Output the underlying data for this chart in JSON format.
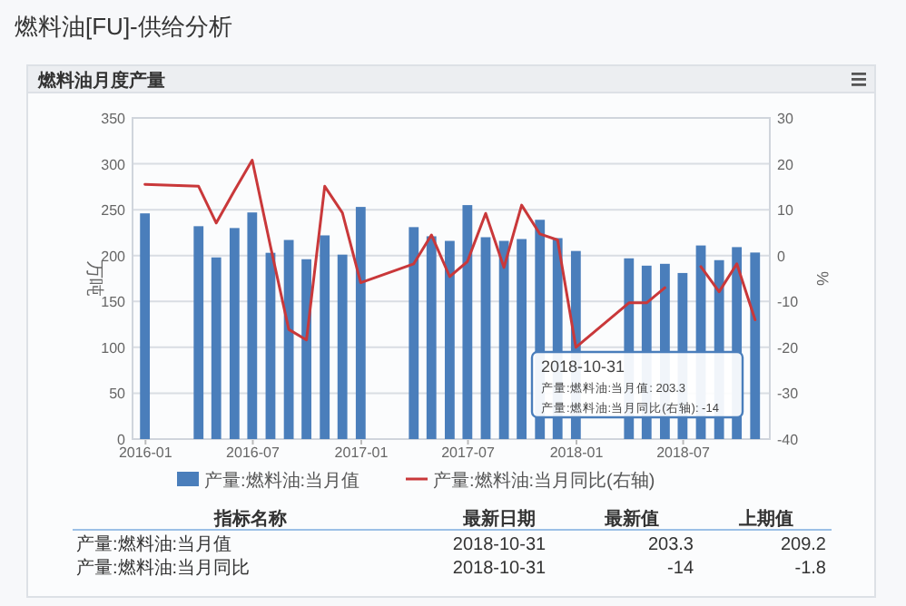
{
  "chart_data": {
    "type": "bar",
    "title": "燃料油[FU]-供给分析",
    "subtitle": "燃料油月度产量",
    "ylabel": "万吨",
    "y2label": "%",
    "x": [
      "2015-12-31",
      "2016-03-31",
      "2016-04-30",
      "2016-05-31",
      "2016-06-30",
      "2016-07-31",
      "2016-08-31",
      "2016-09-30",
      "2016-10-31",
      "2016-11-30",
      "2016-12-31",
      "2017-03-31",
      "2017-04-30",
      "2017-05-31",
      "2017-06-30",
      "2017-07-31",
      "2017-08-31",
      "2017-09-30",
      "2017-10-31",
      "2017-11-30",
      "2017-12-31",
      "2018-03-31",
      "2018-04-30",
      "2018-05-31",
      "2018-06-30",
      "2018-07-31",
      "2018-08-31",
      "2018-09-30",
      "2018-10-31"
    ],
    "series": [
      {
        "name": "产量:燃料油:当月值",
        "color": "#4a7ebb",
        "values": [
          246,
          232,
          198,
          230,
          247,
          203,
          217,
          196,
          222,
          201,
          253,
          231,
          221,
          216,
          255,
          220,
          216,
          218,
          239,
          219,
          205,
          197,
          189,
          191,
          181,
          211,
          195,
          209.2,
          203.3
        ]
      },
      {
        "name": "产量:燃料油:当月同比(右轴)",
        "type": "line",
        "axis": "y2",
        "color": "#c9383a",
        "values": [
          15.5,
          15.1,
          7.1,
          14.2,
          20.8,
          2,
          -16.1,
          -18.4,
          15.1,
          9.3,
          -5.9,
          -1.8,
          4.5,
          -4.6,
          -1.3,
          9.2,
          -2.6,
          11.0,
          4.7,
          3.4,
          -20.0,
          -10.3,
          -10.3,
          -7.0,
          null,
          -2.4,
          -7.9,
          -1.8,
          -14
        ]
      }
    ],
    "xlim": [
      "2015-12-10",
      "2018-11-25"
    ],
    "xticks": [
      "2016-01",
      "2016-07",
      "2017-01",
      "2017-07",
      "2018-01",
      "2018-07"
    ],
    "ylim": [
      0,
      350
    ],
    "yticks": [
      0,
      50,
      100,
      150,
      200,
      250,
      300,
      350
    ],
    "y2lim": [
      -40,
      30
    ],
    "y2ticks": [
      -40,
      -30,
      -20,
      -10,
      0,
      10,
      20,
      30
    ],
    "grid": "y",
    "legend": "bottom",
    "marker": "none",
    "line_style": "solid",
    "annotations": [
      "2018-10-31\n产量:燃料油:当月值: 203.3\n产量:燃料油:当月同比(右轴): -14",
      "指标名称",
      "最新日期",
      "最新值",
      "上期值",
      "产量:燃料油:当月值",
      "2018-10-31",
      "203.3",
      "209.2",
      "产量:燃料油:当月同比",
      "2018-10-31",
      "-14",
      "-1.8"
    ]
  }
}
